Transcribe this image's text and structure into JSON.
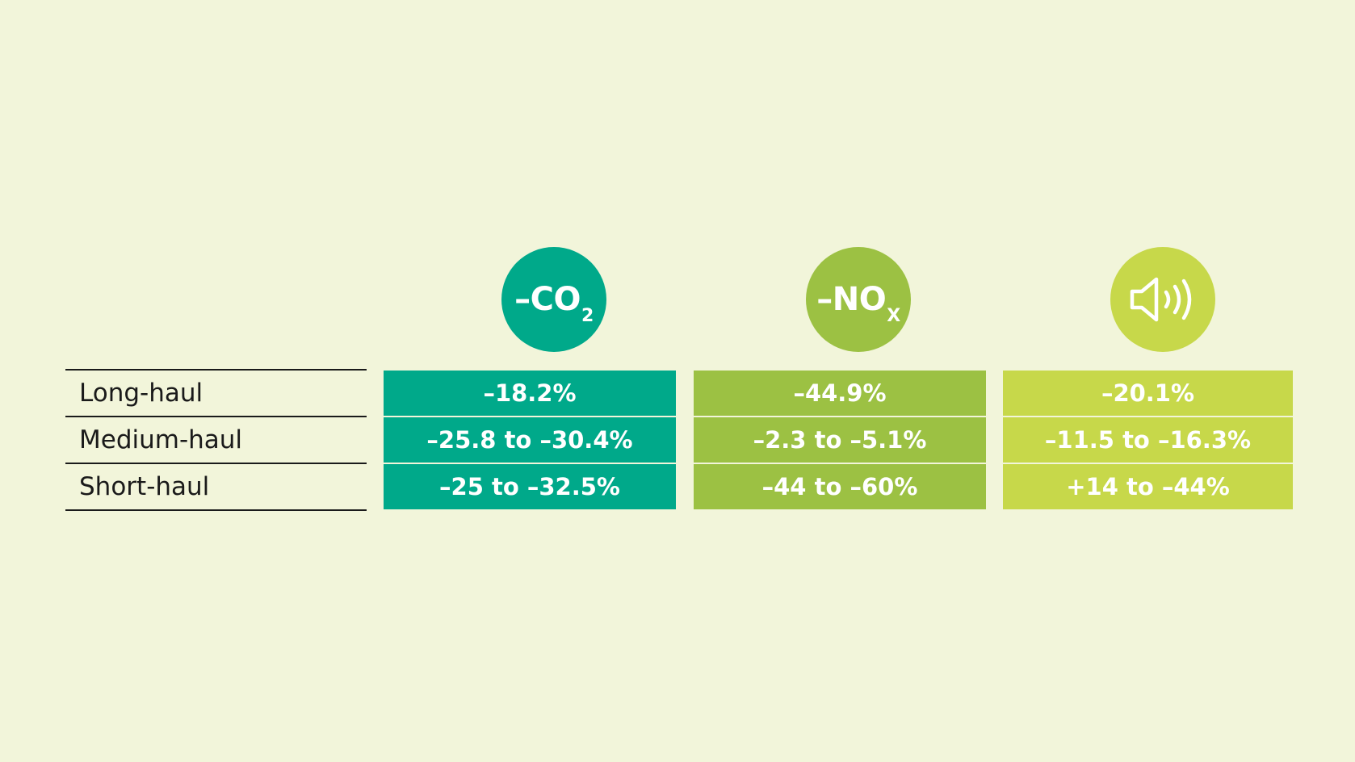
{
  "colors": {
    "background": "#f2f5da",
    "co2": "#00a98a",
    "nox": "#9cc143",
    "noise": "#c7d84a",
    "text_dark": "#1a1a1a"
  },
  "rows": [
    "Long-haul",
    "Medium-haul",
    "Short-haul"
  ],
  "columns": [
    {
      "icon": "co2-icon",
      "minus": "–",
      "symbol": "CO",
      "subscript": "2",
      "values": [
        "–18.2%",
        "–25.8 to –30.4%",
        "–25 to –32.5%"
      ]
    },
    {
      "icon": "nox-icon",
      "minus": "–",
      "symbol": "NO",
      "subscript": "X",
      "values": [
        "–44.9%",
        "–2.3 to –5.1%",
        "–44 to –60%"
      ]
    },
    {
      "icon": "speaker-icon",
      "values": [
        "–20.1%",
        "–11.5 to –16.3%",
        "+14 to –44%"
      ]
    }
  ]
}
